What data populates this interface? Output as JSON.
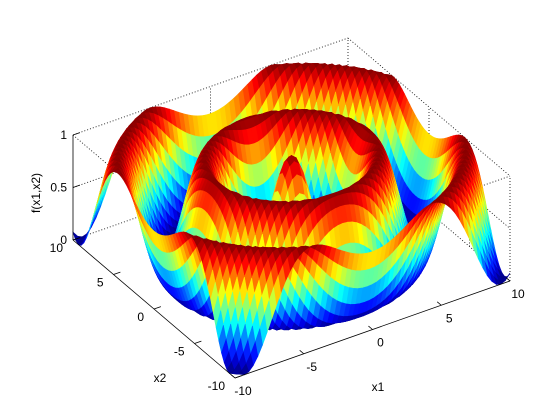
{
  "chart_data": {
    "type": "surface",
    "function": "f(x1,x2)",
    "title": "",
    "xlabel": "x1",
    "ylabel": "x2",
    "zlabel": "f(x1,x2)",
    "xlim": [
      -10,
      10
    ],
    "ylim": [
      -10,
      10
    ],
    "zlim": [
      0,
      1
    ],
    "xticks": [
      "-10",
      "-5",
      "0",
      "5",
      "10"
    ],
    "yticks": [
      "-10",
      "-5",
      "0",
      "5",
      "10"
    ],
    "zticks": [
      "0",
      "0.5",
      "1"
    ],
    "colormap": "jet",
    "grid": true,
    "box": true
  }
}
